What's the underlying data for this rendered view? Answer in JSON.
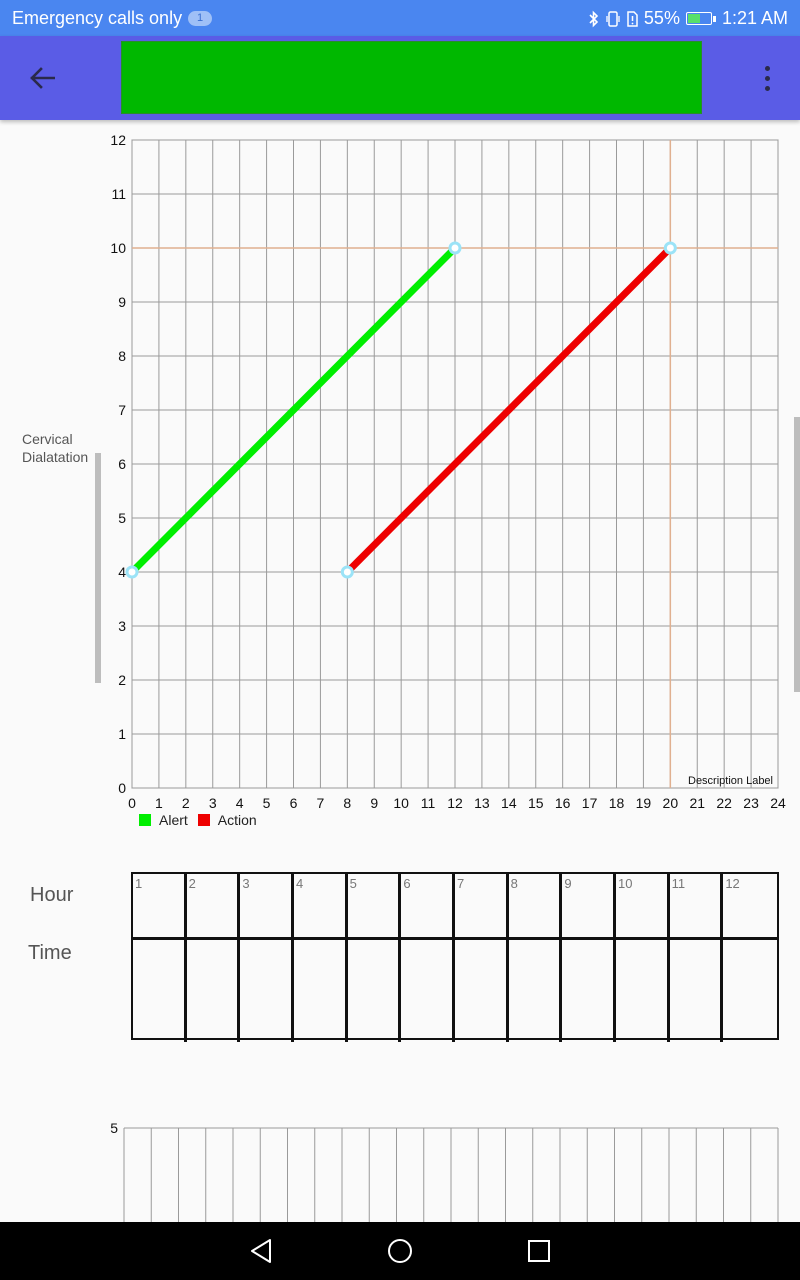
{
  "status_bar": {
    "carrier_text": "Emergency calls only",
    "notification_count": "1",
    "battery_percent": "55%",
    "battery_level": 0.55,
    "time": "1:21 AM"
  },
  "toolbar": {
    "title_color": "#00b800"
  },
  "chart": {
    "y_axis_title_line1": "Cervical",
    "y_axis_title_line2": "Dialatation",
    "description_label": "Description Label",
    "legend": [
      {
        "name": "Alert",
        "color": "#00ee00"
      },
      {
        "name": "Action",
        "color": "#ee0000"
      }
    ]
  },
  "chart_data": {
    "type": "line",
    "x": [
      0,
      12
    ],
    "ylim": [
      0,
      12
    ],
    "xlim": [
      0,
      24
    ],
    "x_ticks": [
      "0",
      "1",
      "2",
      "3",
      "4",
      "5",
      "6",
      "7",
      "8",
      "9",
      "10",
      "11",
      "12",
      "13",
      "14",
      "15",
      "16",
      "17",
      "18",
      "19",
      "20",
      "21",
      "22",
      "23",
      "24"
    ],
    "y_ticks": [
      "0",
      "1",
      "2",
      "3",
      "4",
      "5",
      "6",
      "7",
      "8",
      "9",
      "10",
      "11",
      "12"
    ],
    "ylabel": "Cervical Dialatation",
    "grid": true,
    "legend_position": "bottom-left",
    "series": [
      {
        "name": "Alert",
        "color": "#00ee00",
        "points": [
          [
            0,
            4
          ],
          [
            12,
            10
          ]
        ]
      },
      {
        "name": "Action",
        "color": "#ee0000",
        "points": [
          [
            8,
            4
          ],
          [
            20,
            10
          ]
        ]
      }
    ],
    "reference_lines": {
      "y": 10,
      "x": 20
    }
  },
  "hours_table": {
    "hour_label": "Hour",
    "time_label": "Time",
    "hours": [
      "1",
      "2",
      "3",
      "4",
      "5",
      "6",
      "7",
      "8",
      "9",
      "10",
      "11",
      "12"
    ]
  },
  "second_chart": {
    "top_tick": "5"
  }
}
